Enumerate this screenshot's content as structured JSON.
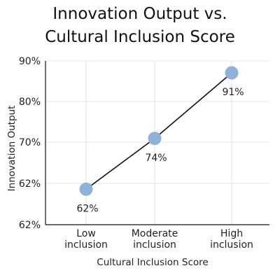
{
  "chart_data": {
    "type": "line",
    "title": [
      "Innovation Output vs.",
      "Cultural Inclusion Score"
    ],
    "xlabel": "Cultural Inclusion Score",
    "ylabel": "Innovation Output",
    "categories": [
      [
        "Low",
        "inclusion"
      ],
      [
        "Moderate",
        "inclusion"
      ],
      [
        "High",
        "inclusion"
      ]
    ],
    "y_tick_labels": [
      "90%",
      "80%",
      "70%",
      "62%",
      "62%"
    ],
    "series": [
      {
        "values": [
          62,
          74,
          91
        ],
        "labels": [
          "62%",
          "74%",
          "91%"
        ],
        "point_y": [
          66.5,
          75.8,
          87.8
        ]
      }
    ],
    "ylim": [
      60,
      90
    ],
    "grid": true,
    "colors": {
      "marker": "#8fb2d6",
      "line": "#111111",
      "grid": "#e4e4e4",
      "axis": "#111111"
    }
  }
}
